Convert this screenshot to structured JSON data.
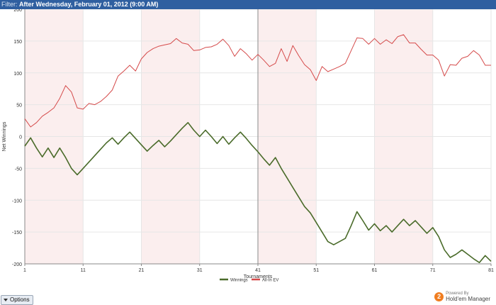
{
  "filter": {
    "label": "Filter:",
    "value": "After Wednesday, February 01, 2012 (9:00 AM)"
  },
  "options_label": "Options",
  "branding": {
    "powered_by": "Powered By",
    "name": "Hold'em Manager"
  },
  "colors": {
    "winnings": "#4a6b2a",
    "allin_ev": "#d54a4a",
    "band": "#fbeeee"
  },
  "chart_data": {
    "type": "line",
    "title": "",
    "xlabel": "Tournaments",
    "ylabel": "Net Winnings",
    "xlim": [
      1,
      81
    ],
    "ylim": [
      -200,
      200
    ],
    "xticks": [
      1,
      11,
      21,
      31,
      41,
      51,
      61,
      71,
      81
    ],
    "yticks": [
      -200,
      -150,
      -100,
      -50,
      0,
      50,
      100,
      150,
      200
    ],
    "grid": true,
    "marker_x": 41,
    "bands": [
      [
        1,
        11
      ],
      [
        21,
        31
      ],
      [
        41,
        51
      ],
      [
        61,
        71
      ]
    ],
    "legend_position": "bottom-center",
    "series": [
      {
        "name": "Winnings",
        "color": "#4a6b2a",
        "x": [
          1,
          2,
          3,
          4,
          5,
          6,
          7,
          8,
          9,
          10,
          11,
          12,
          13,
          14,
          15,
          16,
          17,
          18,
          19,
          20,
          21,
          22,
          23,
          24,
          25,
          26,
          27,
          28,
          29,
          30,
          31,
          32,
          33,
          34,
          35,
          36,
          37,
          38,
          39,
          40,
          41,
          42,
          43,
          44,
          45,
          46,
          47,
          48,
          49,
          50,
          51,
          52,
          53,
          54,
          55,
          56,
          57,
          58,
          59,
          60,
          61,
          62,
          63,
          64,
          65,
          66,
          67,
          68,
          69,
          70,
          71,
          72,
          73,
          74,
          75,
          76,
          77,
          78,
          79,
          80,
          81
        ],
        "values": [
          -15,
          -2,
          -18,
          -32,
          -18,
          -33,
          -18,
          -33,
          -50,
          -60,
          -50,
          -40,
          -30,
          -20,
          -10,
          -2,
          -12,
          -2,
          7,
          -3,
          -13,
          -23,
          -14,
          -6,
          -16,
          -7,
          3,
          13,
          22,
          10,
          0,
          10,
          0,
          -11,
          0,
          -12,
          -2,
          7,
          -3,
          -14,
          -24,
          -35,
          -45,
          -33,
          -50,
          -65,
          -80,
          -95,
          -110,
          -120,
          -135,
          -150,
          -165,
          -170,
          -165,
          -160,
          -140,
          -118,
          -132,
          -147,
          -137,
          -148,
          -140,
          -150,
          -140,
          -130,
          -140,
          -132,
          -142,
          -152,
          -143,
          -157,
          -178,
          -190,
          -185,
          -178,
          -185,
          -192,
          -198,
          -187,
          -196
        ]
      },
      {
        "name": "All-In EV",
        "color": "#d54a4a",
        "x": [
          1,
          2,
          3,
          4,
          5,
          6,
          7,
          8,
          9,
          10,
          11,
          12,
          13,
          14,
          15,
          16,
          17,
          18,
          19,
          20,
          21,
          22,
          23,
          24,
          25,
          26,
          27,
          28,
          29,
          30,
          31,
          32,
          33,
          34,
          35,
          36,
          37,
          38,
          39,
          40,
          41,
          42,
          43,
          44,
          45,
          46,
          47,
          48,
          49,
          50,
          51,
          52,
          53,
          54,
          55,
          56,
          57,
          58,
          59,
          60,
          61,
          62,
          63,
          64,
          65,
          66,
          67,
          68,
          69,
          70,
          71,
          72,
          73,
          74,
          75,
          76,
          77,
          78,
          79,
          80,
          81
        ],
        "values": [
          28,
          15,
          22,
          32,
          38,
          45,
          60,
          80,
          70,
          45,
          43,
          52,
          50,
          55,
          63,
          73,
          95,
          103,
          112,
          103,
          122,
          132,
          138,
          142,
          144,
          146,
          154,
          147,
          145,
          135,
          136,
          140,
          141,
          145,
          153,
          143,
          126,
          138,
          130,
          120,
          129,
          120,
          110,
          115,
          138,
          118,
          143,
          127,
          113,
          105,
          88,
          110,
          102,
          106,
          110,
          115,
          135,
          155,
          154,
          145,
          154,
          145,
          152,
          146,
          157,
          160,
          147,
          147,
          137,
          128,
          128,
          120,
          95,
          113,
          112,
          123,
          126,
          135,
          128,
          112,
          112
        ]
      }
    ]
  }
}
